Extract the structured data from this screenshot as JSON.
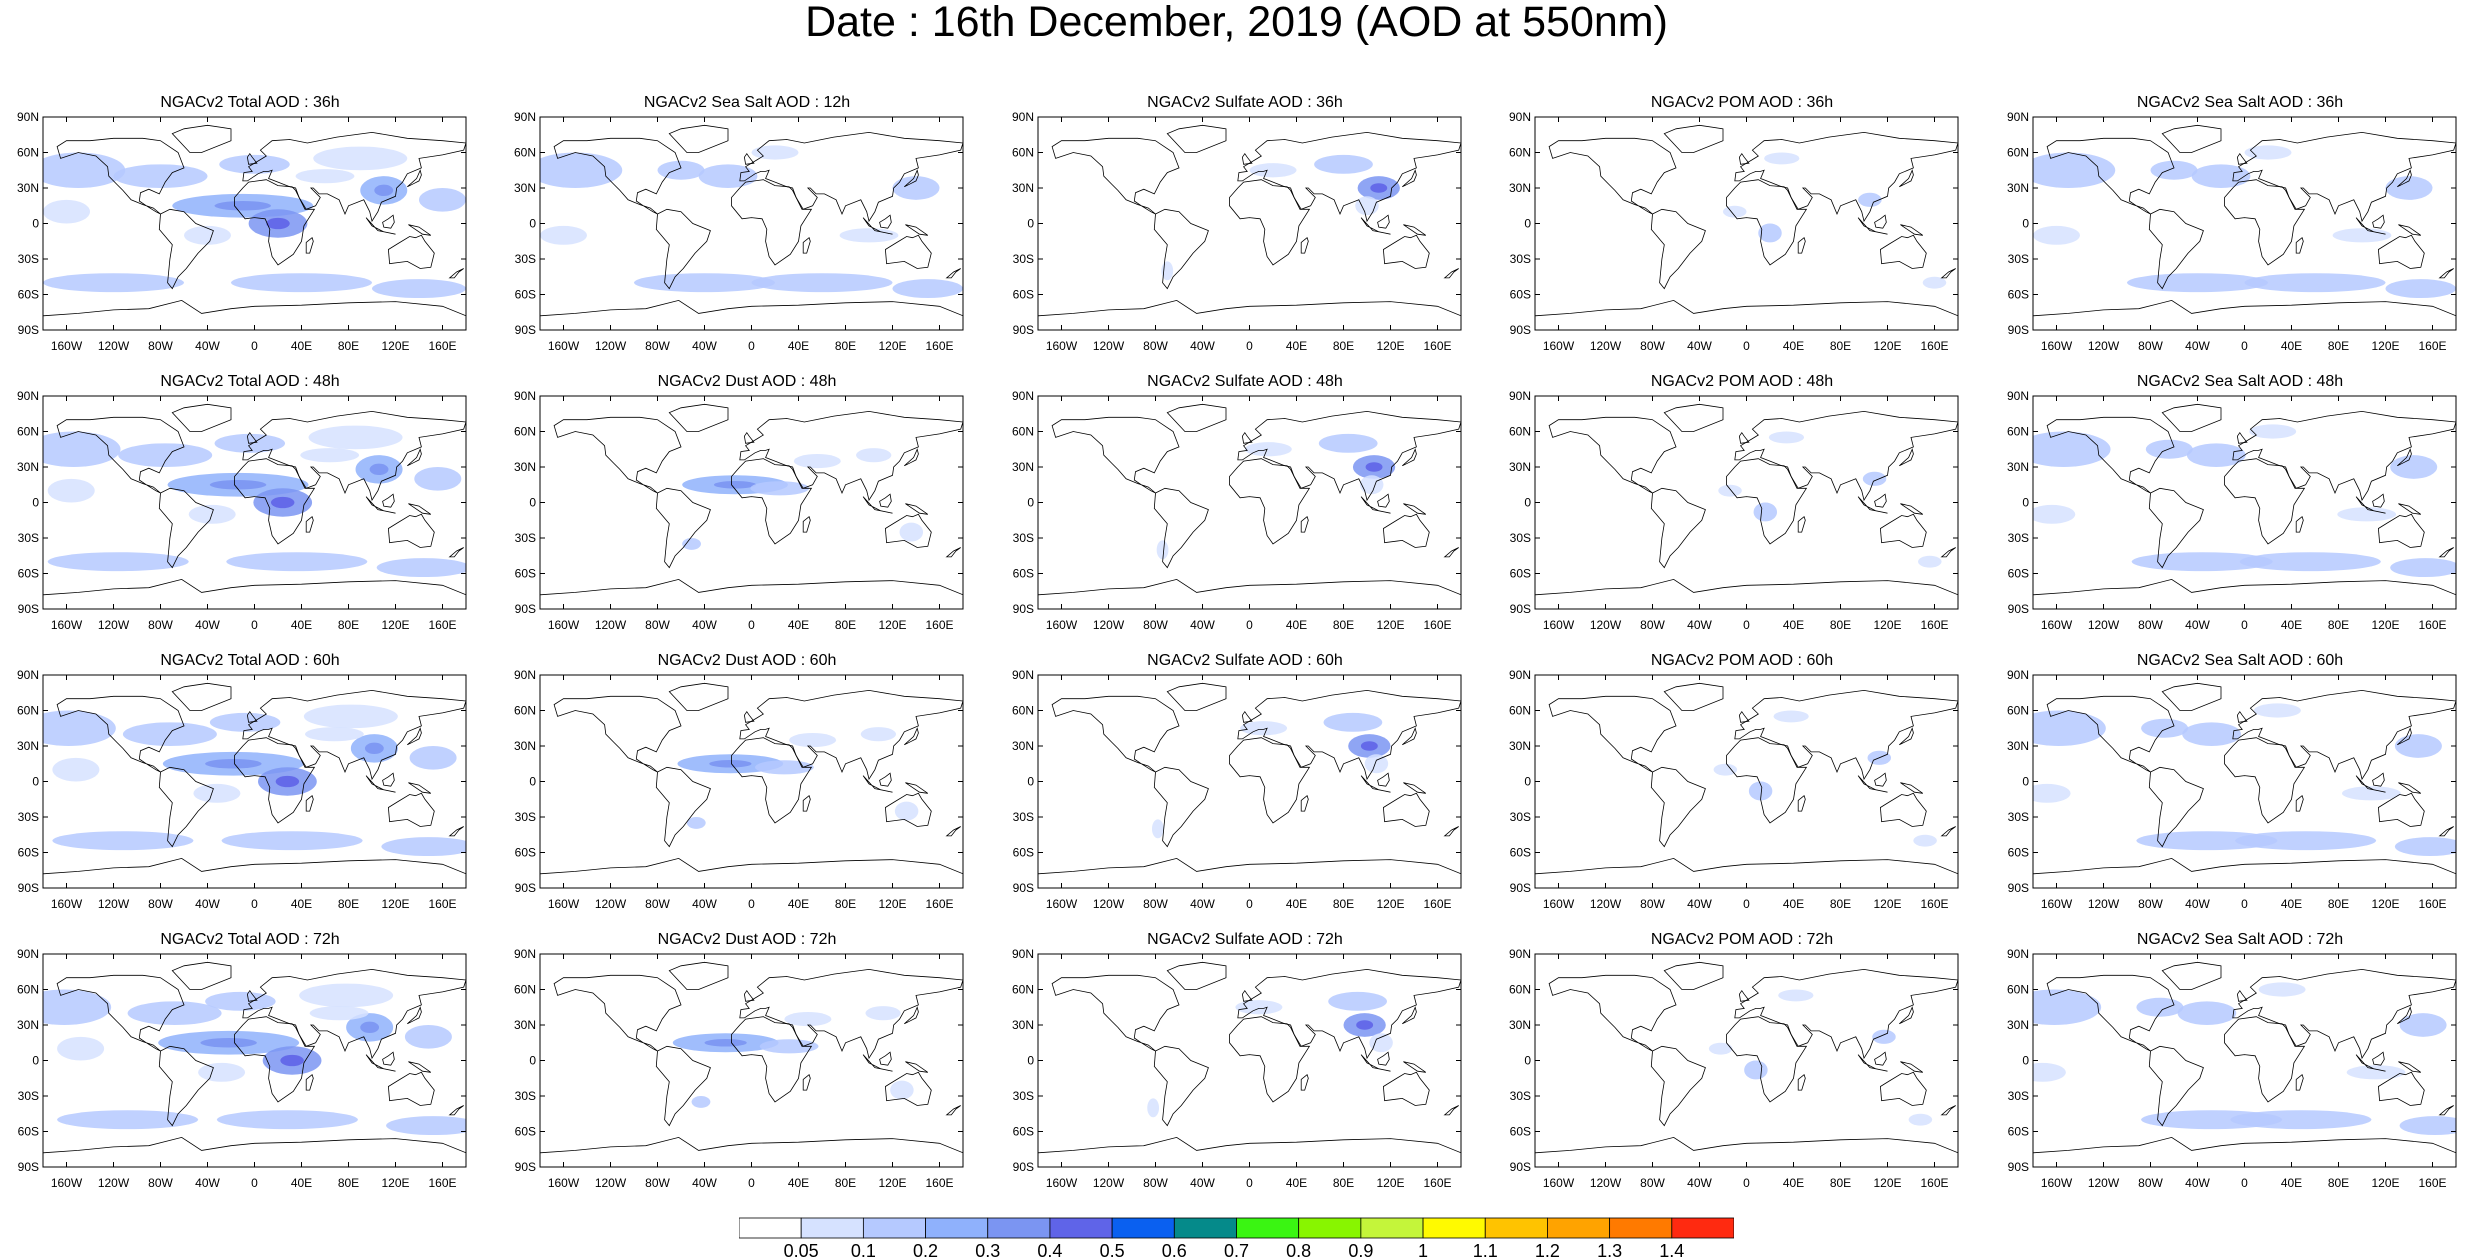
{
  "title": "Date : 16th December, 2019 (AOD at 550nm)",
  "panels": [
    [
      "NGACv2 Total AOD : 36h",
      "NGACv2 Sea Salt  AOD : 12h",
      "NGACv2 Sulfate AOD : 36h",
      "NGACv2 POM AOD : 36h",
      "NGACv2 Sea Salt AOD : 36h"
    ],
    [
      "NGACv2 Total AOD : 48h",
      "NGACv2 Dust AOD : 48h",
      "NGACv2 Sulfate AOD : 48h",
      "NGACv2 POM AOD : 48h",
      "NGACv2 Sea Salt AOD : 48h"
    ],
    [
      "NGACv2 Total AOD : 60h",
      "NGACv2 Dust AOD : 60h",
      "NGACv2 Sulfate AOD : 60h",
      "NGACv2 POM AOD : 60h",
      "NGACv2 Sea Salt AOD : 60h"
    ],
    [
      "NGACv2 Total AOD : 72h",
      "NGACv2 Dust AOD : 72h",
      "NGACv2 Sulfate AOD : 72h",
      "NGACv2 POM AOD : 72h",
      "NGACv2 Sea Salt  AOD : 72h"
    ]
  ],
  "lat_ticks": [
    "90N",
    "60N",
    "30N",
    "0",
    "30S",
    "60S",
    "90S"
  ],
  "lon_ticks": [
    "160W",
    "120W",
    "80W",
    "40W",
    "0",
    "40E",
    "80E",
    "120E",
    "160E"
  ],
  "colorbar": {
    "labels": [
      "0.05",
      "0.1",
      "0.2",
      "0.3",
      "0.4",
      "0.5",
      "0.6",
      "0.7",
      "0.8",
      "0.9",
      "1",
      "1.1",
      "1.2",
      "1.3",
      "1.4"
    ],
    "colors": [
      "#ffffff",
      "#d6e2ff",
      "#b5c9ff",
      "#8fb1fc",
      "#7b95f2",
      "#5f64e8",
      "#0a60f0",
      "#058a8a",
      "#3af512",
      "#88f500",
      "#c4f53a",
      "#fffa00",
      "#ffc300",
      "#ffa300",
      "#ff7a00",
      "#ff2a10"
    ]
  }
}
